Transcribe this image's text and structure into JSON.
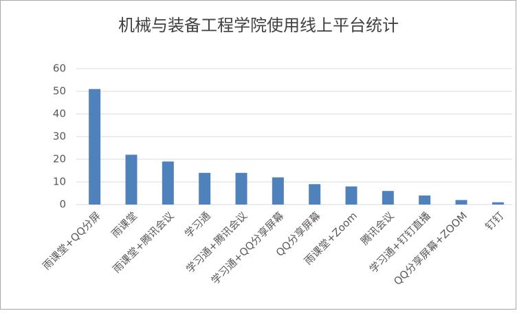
{
  "chart_data": {
    "type": "bar",
    "title": "机械与装备工程学院使用线上平台统计",
    "categories": [
      "雨课堂+QQ分屏",
      "雨课堂",
      "雨课堂+腾讯会议",
      "学习通",
      "学习通+腾讯会议",
      "学习通+QQ分享屏幕",
      "QQ分享屏幕",
      "雨课堂+Zoom",
      "腾讯会议",
      "学习通+钉钉直播",
      "QQ分享屏幕+ZOOM",
      "钉钉"
    ],
    "values": [
      51,
      22,
      19,
      14,
      14,
      12,
      9,
      8,
      6,
      4,
      2,
      1
    ],
    "color": "#4f81bd",
    "ylim": [
      0,
      60
    ],
    "yticks": [
      0,
      10,
      20,
      30,
      40,
      50,
      60
    ],
    "grid": true
  }
}
